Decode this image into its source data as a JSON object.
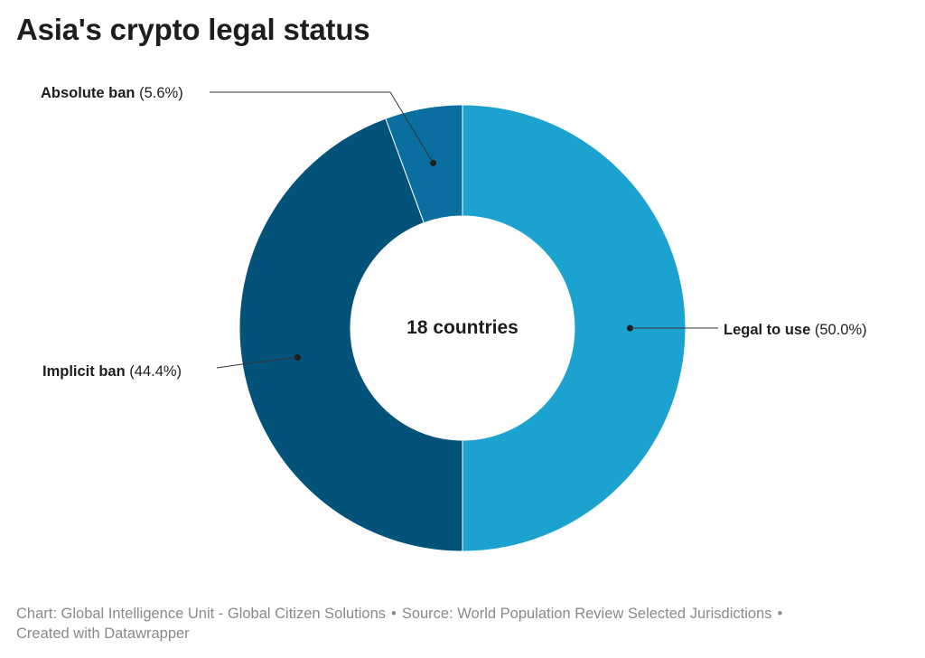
{
  "title": "Asia's crypto legal status",
  "chart_data": {
    "type": "pie",
    "variant": "donut",
    "center_label": "18 countries",
    "slices": [
      {
        "name": "Legal to use",
        "value": 50.0,
        "label": "(50.0%)",
        "color": "#1ba2cf"
      },
      {
        "name": "Implicit ban",
        "value": 44.4,
        "label": "(44.4%)",
        "color": "#02527a"
      },
      {
        "name": "Absolute ban",
        "value": 5.6,
        "label": "(5.6%)",
        "color": "#0a6fa0"
      }
    ]
  },
  "footer": {
    "chart_credit": "Chart: Global Intelligence Unit - Global Citizen Solutions",
    "source": "Source: World Population Review Selected Jurisdictions",
    "created_with": "Created with Datawrapper",
    "separator": "•"
  }
}
